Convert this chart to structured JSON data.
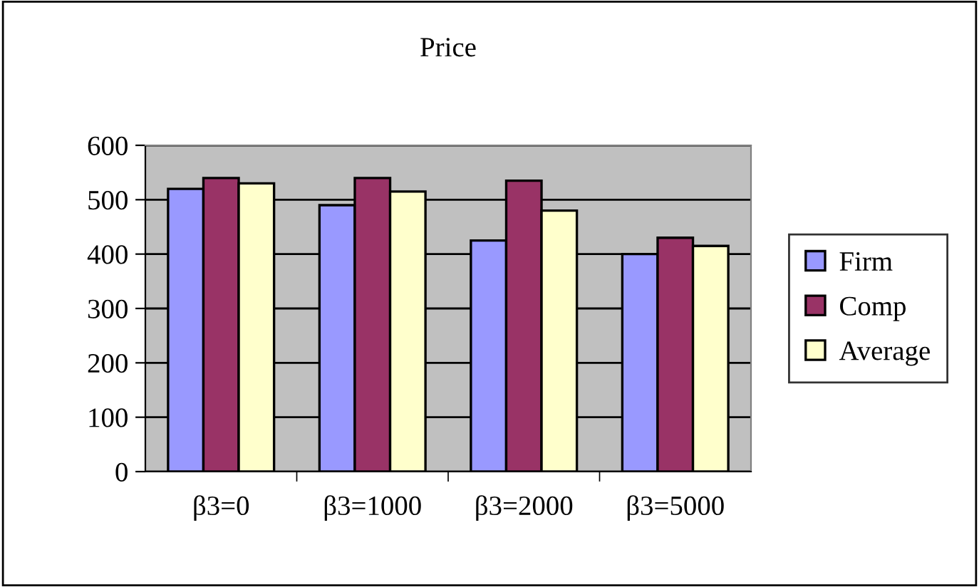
{
  "chart_data": {
    "type": "bar",
    "title": "Price",
    "categories": [
      "β3=0",
      "β3=1000",
      "β3=2000",
      "β3=5000"
    ],
    "series": [
      {
        "name": "Firm",
        "color": "#9999ff",
        "values": [
          520,
          490,
          425,
          400
        ]
      },
      {
        "name": "Comp",
        "color": "#993366",
        "values": [
          540,
          540,
          535,
          430
        ]
      },
      {
        "name": "Average",
        "color": "#ffffcc",
        "values": [
          530,
          515,
          480,
          415
        ]
      }
    ],
    "ylim": [
      0,
      600
    ],
    "yticks": [
      0,
      100,
      200,
      300,
      400,
      500,
      600
    ],
    "grid": "y",
    "legend": "right"
  }
}
